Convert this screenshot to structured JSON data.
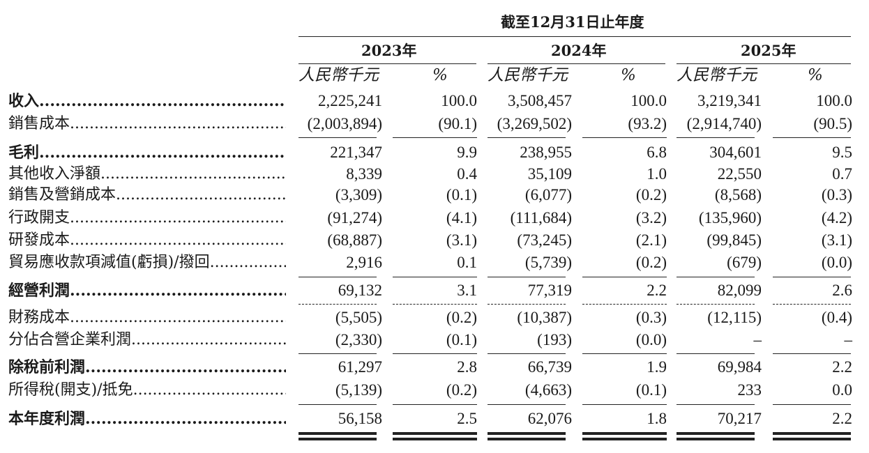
{
  "header": {
    "period": "截至12月31日止年度",
    "years": [
      "2023年",
      "2024年",
      "2025年"
    ],
    "unit_rmb": "人民幣千元",
    "unit_pct": "%"
  },
  "rows": [
    {
      "label": "收入",
      "bold": true,
      "v": [
        "2,225,241",
        "100.0",
        "3,508,457",
        "100.0",
        "3,219,341",
        "100.0"
      ]
    },
    {
      "label": "銷售成本",
      "bold": false,
      "v": [
        "(2,003,894)",
        "(90.1)",
        "(3,269,502)",
        "(93.2)",
        "(2,914,740)",
        "(90.5)"
      ]
    },
    {
      "label": "毛利",
      "bold": true,
      "v": [
        "221,347",
        "9.9",
        "238,955",
        "6.8",
        "304,601",
        "9.5"
      ]
    },
    {
      "label": "其他收入淨額",
      "bold": false,
      "v": [
        "8,339",
        "0.4",
        "35,109",
        "1.0",
        "22,550",
        "0.7"
      ]
    },
    {
      "label": "銷售及營銷成本",
      "bold": false,
      "v": [
        "(3,309)",
        "(0.1)",
        "(6,077)",
        "(0.2)",
        "(8,568)",
        "(0.3)"
      ]
    },
    {
      "label": "行政開支",
      "bold": false,
      "v": [
        "(91,274)",
        "(4.1)",
        "(111,684)",
        "(3.2)",
        "(135,960)",
        "(4.2)"
      ]
    },
    {
      "label": "研發成本",
      "bold": false,
      "v": [
        "(68,887)",
        "(3.1)",
        "(73,245)",
        "(2.1)",
        "(99,845)",
        "(3.1)"
      ]
    },
    {
      "label": "貿易應收款項減值(虧損)/撥回",
      "bold": false,
      "v": [
        "2,916",
        "0.1",
        "(5,739)",
        "(0.2)",
        "(679)",
        "(0.0)"
      ]
    },
    {
      "label": "經營利潤",
      "bold": true,
      "v": [
        "69,132",
        "3.1",
        "77,319",
        "2.2",
        "82,099",
        "2.6"
      ]
    },
    {
      "label": "財務成本",
      "bold": false,
      "v": [
        "(5,505)",
        "(0.2)",
        "(10,387)",
        "(0.3)",
        "(12,115)",
        "(0.4)"
      ]
    },
    {
      "label": "分佔合營企業利潤",
      "bold": false,
      "v": [
        "(2,330)",
        "(0.1)",
        "(193)",
        "(0.0)",
        "–",
        "–"
      ]
    },
    {
      "label": "除稅前利潤",
      "bold": true,
      "v": [
        "61,297",
        "2.8",
        "66,739",
        "1.9",
        "69,984",
        "2.2"
      ]
    },
    {
      "label": "所得稅(開支)/抵免",
      "bold": false,
      "v": [
        "(5,139)",
        "(0.2)",
        "(4,663)",
        "(0.1)",
        "233",
        "0.0"
      ]
    },
    {
      "label": "本年度利潤",
      "bold": true,
      "v": [
        "56,158",
        "2.5",
        "62,076",
        "1.8",
        "70,217",
        "2.2"
      ]
    }
  ]
}
